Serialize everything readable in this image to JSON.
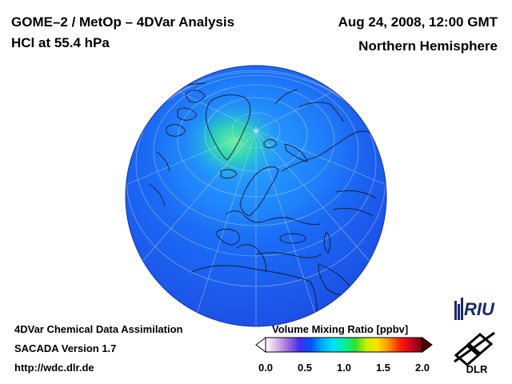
{
  "header": {
    "title_left": "GOME–2 / MetOp – 4DVar Analysis",
    "subtitle_left": "HCl at 55.4 hPa",
    "title_right": "Aug 24, 2008, 12:00 GMT",
    "subtitle_right": "Northern Hemisphere"
  },
  "footer": {
    "line1": "4DVar Chemical Data Assimilation",
    "line2": "SACADA Version 1.7",
    "line3": "http://wdc.dlr.de"
  },
  "colorbar": {
    "title": "Volume Mixing Ratio [ppbv]",
    "ticks": [
      "0.0",
      "0.5",
      "1.0",
      "1.5",
      "2.0"
    ],
    "range": [
      0.0,
      2.0
    ],
    "colors": [
      "#ffffff",
      "#d8b8e8",
      "#9c6cdc",
      "#4a2cf0",
      "#0050ff",
      "#00a8ff",
      "#00e0ff",
      "#00f0a0",
      "#30e030",
      "#c8f000",
      "#ffe000",
      "#ff9000",
      "#ff2000",
      "#d00020",
      "#700000"
    ]
  },
  "logos": {
    "riu": "RIU",
    "dlr": "DLR"
  },
  "map": {
    "projection": "orthographic",
    "center": "North Pole",
    "field": "HCl volume mixing ratio",
    "dominant_color": "#1e6ef8",
    "high_region_color": "#30d8a0"
  }
}
